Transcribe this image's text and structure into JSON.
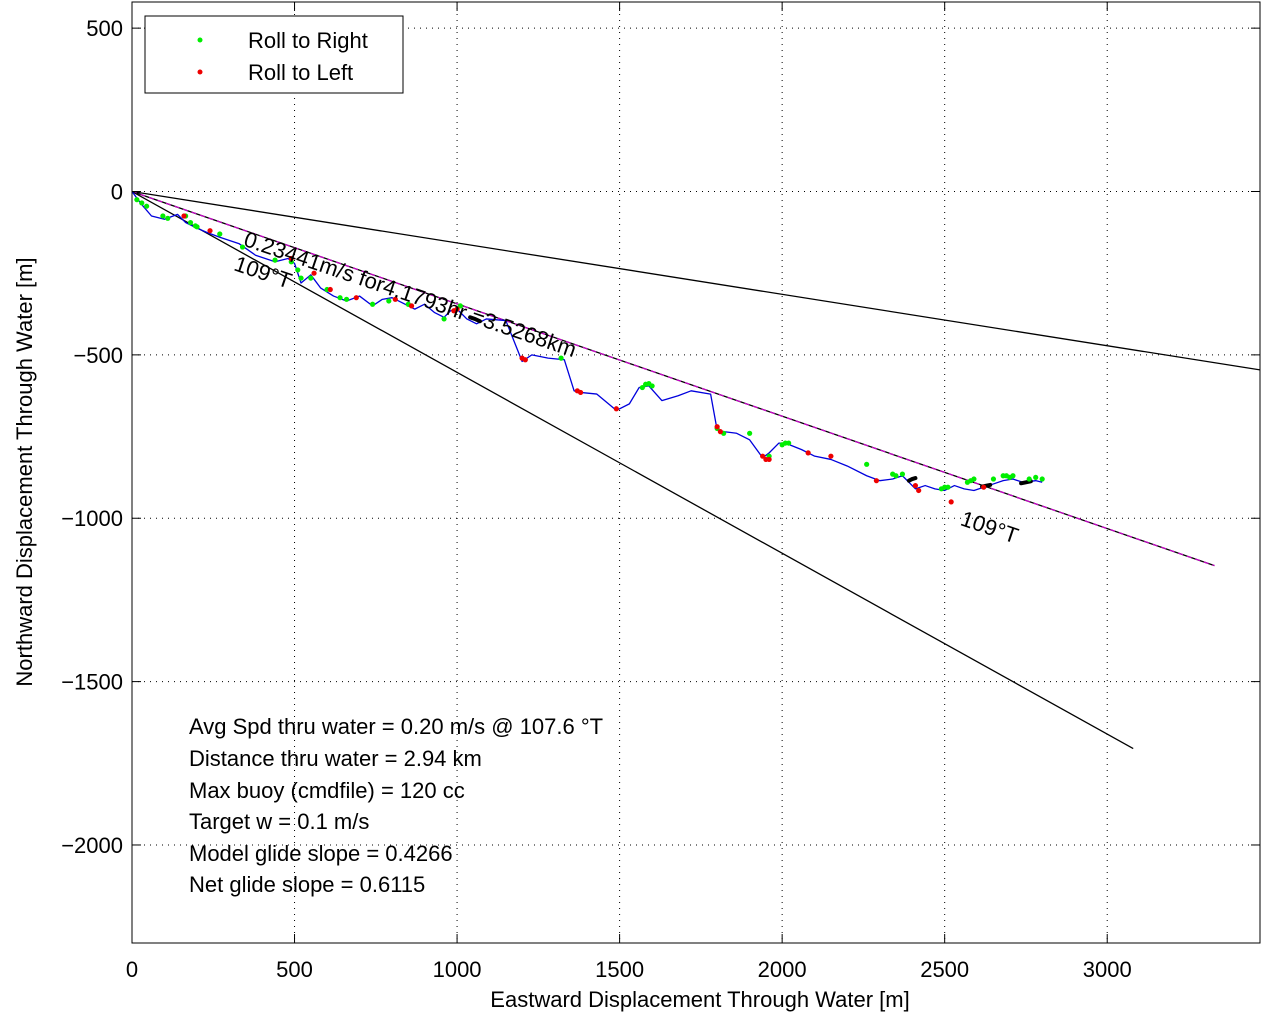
{
  "chart_data": {
    "type": "line",
    "xlabel": "Eastward Displacement Through Water [m]",
    "ylabel": "Northward Displacement Through Water [m]",
    "xlim": [
      0,
      3470
    ],
    "ylim": [
      -2300,
      580
    ],
    "xticks": [
      0,
      500,
      1000,
      1500,
      2000,
      2500,
      3000
    ],
    "yticks": [
      500,
      0,
      -500,
      -1000,
      -1500,
      -2000
    ],
    "xtick_labels": [
      "0",
      "500",
      "1000",
      "1500",
      "2000",
      "2500",
      "3000"
    ],
    "ytick_labels": [
      "500",
      "0",
      "−500",
      "−1000",
      "−1500",
      "−2000"
    ],
    "grid": true,
    "legend": {
      "position": "top-left",
      "entries": [
        {
          "label": "Roll to Right",
          "color": "#00ee00"
        },
        {
          "label": "Roll to Left",
          "color": "#ee0000"
        }
      ]
    },
    "reference_lines": [
      {
        "color": "#000000",
        "points": [
          [
            0,
            0
          ],
          [
            3470,
            -546
          ]
        ]
      },
      {
        "color": "#000000",
        "points": [
          [
            0,
            0
          ],
          [
            3330,
            -1145
          ]
        ]
      },
      {
        "color": "#cc00cc",
        "dashed": true,
        "points": [
          [
            0,
            0
          ],
          [
            3330,
            -1145
          ]
        ]
      },
      {
        "color": "#000000",
        "points": [
          [
            0,
            0
          ],
          [
            3080,
            -1705
          ]
        ]
      }
    ],
    "annotations": [
      {
        "text": "0.23441m/s for4.1793hr =3.5268km",
        "x": 340,
        "y": -165,
        "rotation": 18.7
      },
      {
        "text": "109°T",
        "x": 310,
        "y": -240,
        "rotation": 18.7
      },
      {
        "text": "109°T",
        "x": 2545,
        "y": -1020,
        "rotation": 18.7
      }
    ],
    "series": [
      {
        "color": "#0000dd",
        "x": [
          0,
          30,
          60,
          100,
          140,
          165,
          195,
          230,
          270,
          330,
          380,
          440,
          480,
          500,
          520,
          550,
          580,
          620,
          660,
          700,
          740,
          770,
          800,
          830,
          870,
          900,
          930,
          960,
          980,
          1000,
          1030,
          1060,
          1090,
          1150,
          1200,
          1230,
          1280,
          1330,
          1360,
          1380,
          1430,
          1490,
          1530,
          1560,
          1590,
          1630,
          1680,
          1720,
          1780,
          1800,
          1820,
          1860,
          1900,
          1940,
          1960,
          1990,
          2010,
          2060,
          2100,
          2150,
          2200,
          2260,
          2300,
          2340,
          2370,
          2410,
          2440,
          2470,
          2500,
          2530,
          2560,
          2590,
          2620,
          2650,
          2680,
          2710,
          2740,
          2780,
          2800
        ],
        "y": [
          0,
          -40,
          -75,
          -85,
          -70,
          -95,
          -110,
          -125,
          -140,
          -160,
          -195,
          -215,
          -205,
          -220,
          -280,
          -255,
          -295,
          -320,
          -335,
          -320,
          -350,
          -330,
          -325,
          -340,
          -360,
          -345,
          -370,
          -385,
          -365,
          -360,
          -390,
          -405,
          -390,
          -395,
          -520,
          -500,
          -510,
          -515,
          -610,
          -615,
          -620,
          -670,
          -650,
          -600,
          -595,
          -640,
          -625,
          -610,
          -620,
          -730,
          -735,
          -740,
          -760,
          -815,
          -800,
          -770,
          -770,
          -790,
          -810,
          -820,
          -840,
          -870,
          -885,
          -880,
          -870,
          -910,
          -900,
          -910,
          -915,
          -900,
          -910,
          -915,
          -905,
          -895,
          -885,
          -880,
          -890,
          -885,
          -890
        ]
      },
      {
        "color": "#000000",
        "x": [
          1040,
          1055,
          1070,
          2390,
          2400,
          2410,
          2615,
          2630,
          2640,
          2735,
          2750,
          2765
        ],
        "y": [
          -385,
          -390,
          -397,
          -885,
          -880,
          -877,
          -903,
          -900,
          -898,
          -893,
          -890,
          -887
        ]
      }
    ],
    "roll_right_points": {
      "x": [
        15,
        30,
        45,
        95,
        110,
        165,
        180,
        195,
        200,
        270,
        340,
        440,
        490,
        510,
        520,
        550,
        600,
        640,
        660,
        740,
        790,
        850,
        960,
        1010,
        1320,
        1570,
        1580,
        1590,
        1600,
        1800,
        1820,
        1900,
        1960,
        2000,
        2010,
        2020,
        2260,
        2340,
        2350,
        2370,
        2490,
        2500,
        2510,
        2570,
        2580,
        2590,
        2650,
        2680,
        2690,
        2700,
        2710,
        2760,
        2780,
        2800
      ],
      "y": [
        -25,
        -35,
        -45,
        -75,
        -82,
        -75,
        -95,
        -105,
        -108,
        -130,
        -170,
        -210,
        -215,
        -240,
        -265,
        -265,
        -300,
        -325,
        -330,
        -345,
        -335,
        -345,
        -390,
        -350,
        -510,
        -600,
        -590,
        -588,
        -595,
        -725,
        -740,
        -740,
        -810,
        -775,
        -770,
        -770,
        -835,
        -865,
        -870,
        -865,
        -910,
        -905,
        -905,
        -890,
        -885,
        -880,
        -880,
        -870,
        -870,
        -875,
        -870,
        -880,
        -875,
        -880
      ]
    },
    "roll_left_points": {
      "x": [
        160,
        240,
        490,
        560,
        610,
        690,
        810,
        860,
        990,
        1000,
        1200,
        1210,
        1370,
        1380,
        1490,
        1800,
        1810,
        1940,
        1950,
        1960,
        2080,
        2150,
        2290,
        2410,
        2420,
        2520,
        2620
      ],
      "y": [
        -75,
        -120,
        -205,
        -250,
        -300,
        -325,
        -330,
        -350,
        -365,
        -360,
        -510,
        -515,
        -610,
        -615,
        -665,
        -720,
        -735,
        -810,
        -820,
        -820,
        -800,
        -810,
        -885,
        -900,
        -915,
        -950,
        -905
      ]
    },
    "text_block": [
      "Avg Spd thru water =  0.20 m/s @ 107.6    °T",
      "Distance thru water =  2.94 km",
      "Max buoy (cmdfile) = 120 cc",
      "Target w = 0.1 m/s",
      "Model glide slope = 0.4266",
      "Net glide slope = 0.6115"
    ]
  }
}
